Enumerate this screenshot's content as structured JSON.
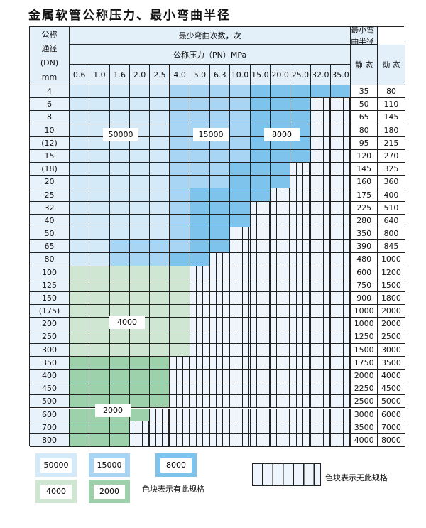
{
  "title": "金属软管公称压力、最小弯曲半径",
  "header": {
    "dn_label": [
      "公称",
      "通径",
      "(DN)",
      "mm"
    ],
    "cycles_label": "最少弯曲次数，次",
    "pressure_label": "公称压力（PN）MPa",
    "radius_label": "最小弯曲半径",
    "static_label": "静 态",
    "dynamic_label": "动 态",
    "pressures": [
      "0.6",
      "1.0",
      "1.6",
      "2.0",
      "2.5",
      "4.0",
      "5.0",
      "6.3",
      "10.0",
      "15.0",
      "20.0",
      "25.0",
      "32.0",
      "35.0"
    ]
  },
  "rows": [
    {
      "dn": "4",
      "static": "35",
      "dynamic": "80",
      "cells": "AAAAABBBBCCCCC"
    },
    {
      "dn": "6",
      "static": "50",
      "dynamic": "110",
      "cells": "AAAAABBBBCCCNN"
    },
    {
      "dn": "8",
      "static": "65",
      "dynamic": "145",
      "cells": "AAAAABBBBCCCNN"
    },
    {
      "dn": "10",
      "static": "80",
      "dynamic": "180",
      "cells": "AAAAABBBBCCCNN"
    },
    {
      "dn": "(12)",
      "static": "95",
      "dynamic": "215",
      "cells": "AAAAABBBBCCCNN"
    },
    {
      "dn": "15",
      "static": "120",
      "dynamic": "270",
      "cells": "AAAAABBBBCCCNN"
    },
    {
      "dn": "(18)",
      "static": "145",
      "dynamic": "325",
      "cells": "AAAAABBBCCCNNN"
    },
    {
      "dn": "20",
      "static": "160",
      "dynamic": "360",
      "cells": "AAAAABBBCCCNNN"
    },
    {
      "dn": "25",
      "static": "175",
      "dynamic": "400",
      "cells": "AAAAABCCCCNNNN"
    },
    {
      "dn": "32",
      "static": "225",
      "dynamic": "510",
      "cells": "AAAAABCCCNNNNN"
    },
    {
      "dn": "40",
      "static": "280",
      "dynamic": "640",
      "cells": "AAAAABCCCNNNNN"
    },
    {
      "dn": "50",
      "static": "350",
      "dynamic": "800",
      "cells": "AAAAABCCNNNNNN"
    },
    {
      "dn": "65",
      "static": "390",
      "dynamic": "845",
      "cells": "AABBBBCCNNNNNN"
    },
    {
      "dn": "80",
      "static": "480",
      "dynamic": "1000",
      "cells": "AABBBCCNNNNNNN"
    },
    {
      "dn": "100",
      "static": "600",
      "dynamic": "1200",
      "cells": "GGGGGGNNNNNNNN"
    },
    {
      "dn": "125",
      "static": "750",
      "dynamic": "1500",
      "cells": "GGGGGGNNNNNNNN"
    },
    {
      "dn": "150",
      "static": "900",
      "dynamic": "1800",
      "cells": "GGGGGGNNNNNNNN"
    },
    {
      "dn": "(175)",
      "static": "1000",
      "dynamic": "2000",
      "cells": "GGGGGGNNNNNNNN"
    },
    {
      "dn": "200",
      "static": "1000",
      "dynamic": "2000",
      "cells": "GGGGGGNNNNNNNN"
    },
    {
      "dn": "250",
      "static": "1250",
      "dynamic": "2500",
      "cells": "GGGGGGNNNNNNNN"
    },
    {
      "dn": "300",
      "static": "1500",
      "dynamic": "3000",
      "cells": "GGGGGGNNNNNNNN"
    },
    {
      "dn": "350",
      "static": "1750",
      "dynamic": "3500",
      "cells": "HHHHHNNNNNNNNN"
    },
    {
      "dn": "400",
      "static": "2000",
      "dynamic": "4000",
      "cells": "HHHHHNNNNNNNNN"
    },
    {
      "dn": "450",
      "static": "2250",
      "dynamic": "4500",
      "cells": "HHHHHNNNNNNNNN"
    },
    {
      "dn": "500",
      "static": "2500",
      "dynamic": "5000",
      "cells": "HHHHHNNNNNNNNN"
    },
    {
      "dn": "600",
      "static": "3000",
      "dynamic": "6000",
      "cells": "HHHHNNNNNNNNNN"
    },
    {
      "dn": "700",
      "static": "3500",
      "dynamic": "7000",
      "cells": "HHHNNNNNNNNNNN"
    },
    {
      "dn": "800",
      "static": "4000",
      "dynamic": "8000",
      "cells": "HHHNNNNNNNNNNN"
    }
  ],
  "region_labels": {
    "a": "50000",
    "b": "15000",
    "c": "8000",
    "g1": "4000",
    "g2": "2000"
  },
  "colors": {
    "A": "#d4eaf9",
    "B": "#a8d5f3",
    "C": "#7dc3ec",
    "G": "#cfe6d2",
    "H": "#9dd1ab",
    "N": "#eef5fc"
  },
  "legend": {
    "items": [
      "50000",
      "15000",
      "8000",
      "4000",
      "2000"
    ],
    "has_spec": "色块表示有此规格",
    "no_spec": "色块表示无此规格"
  }
}
